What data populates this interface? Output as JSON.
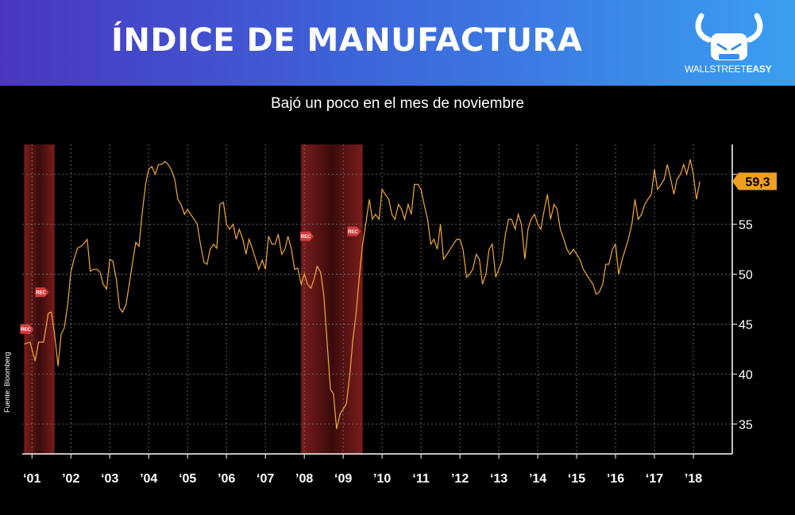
{
  "header": {
    "title": "ÍNDICE DE MANUFACTURA",
    "brand_regular": "WALLSTREET",
    "brand_bold": "EASY",
    "logo_icon": "fist-horns-icon"
  },
  "source_note": "Fuente: Bloomberg",
  "chart_data": {
    "type": "line",
    "title": "",
    "subtitle": "Bajó un poco en el mes de noviembre",
    "xlabel": "",
    "ylabel": "",
    "x_ticks": [
      "‘01",
      "’02",
      "‘03",
      "’04",
      "‘05",
      "’06",
      "‘07",
      "’08",
      "‘09",
      "’10",
      "‘11",
      "’12",
      "‘13",
      "’14",
      "‘15",
      "’16",
      "‘17",
      "’18"
    ],
    "xlim": [
      2000.75,
      2019.0
    ],
    "ylim": [
      32,
      63
    ],
    "y_ticks": [
      35,
      40,
      45,
      50,
      55
    ],
    "grid": true,
    "series": [
      {
        "color": "#f0a93c",
        "points": [
          [
            2000.8,
            43.0
          ],
          [
            2000.95,
            43.2
          ],
          [
            2001.0,
            42.5
          ],
          [
            2001.08,
            41.3
          ],
          [
            2001.17,
            43.2
          ],
          [
            2001.3,
            43.2
          ],
          [
            2001.42,
            46.1
          ],
          [
            2001.5,
            46.2
          ],
          [
            2001.58,
            44.0
          ],
          [
            2001.67,
            40.8
          ],
          [
            2001.75,
            44.0
          ],
          [
            2001.83,
            44.6
          ],
          [
            2001.92,
            47.0
          ],
          [
            2002.0,
            50.2
          ],
          [
            2002.08,
            51.5
          ],
          [
            2002.17,
            52.6
          ],
          [
            2002.3,
            52.9
          ],
          [
            2002.42,
            53.5
          ],
          [
            2002.5,
            50.3
          ],
          [
            2002.58,
            50.5
          ],
          [
            2002.67,
            50.5
          ],
          [
            2002.75,
            50.2
          ],
          [
            2002.83,
            49.0
          ],
          [
            2002.92,
            48.5
          ],
          [
            2003.0,
            51.5
          ],
          [
            2003.08,
            51.3
          ],
          [
            2003.17,
            49.5
          ],
          [
            2003.25,
            46.6
          ],
          [
            2003.33,
            46.2
          ],
          [
            2003.42,
            47.0
          ],
          [
            2003.5,
            49.0
          ],
          [
            2003.58,
            51.0
          ],
          [
            2003.67,
            53.2
          ],
          [
            2003.75,
            52.8
          ],
          [
            2003.83,
            56.0
          ],
          [
            2003.92,
            59.0
          ],
          [
            2004.0,
            60.5
          ],
          [
            2004.08,
            60.8
          ],
          [
            2004.17,
            60.0
          ],
          [
            2004.25,
            61.0
          ],
          [
            2004.33,
            61.0
          ],
          [
            2004.42,
            61.3
          ],
          [
            2004.5,
            61.0
          ],
          [
            2004.58,
            60.5
          ],
          [
            2004.67,
            59.5
          ],
          [
            2004.75,
            57.5
          ],
          [
            2004.83,
            57.0
          ],
          [
            2004.92,
            56.0
          ],
          [
            2005.0,
            56.5
          ],
          [
            2005.08,
            56.0
          ],
          [
            2005.17,
            55.5
          ],
          [
            2005.25,
            55.0
          ],
          [
            2005.33,
            53.0
          ],
          [
            2005.42,
            51.2
          ],
          [
            2005.5,
            51.0
          ],
          [
            2005.58,
            52.5
          ],
          [
            2005.67,
            53.0
          ],
          [
            2005.75,
            52.6
          ],
          [
            2005.83,
            57.0
          ],
          [
            2005.92,
            57.2
          ],
          [
            2006.0,
            55.0
          ],
          [
            2006.08,
            54.5
          ],
          [
            2006.17,
            55.0
          ],
          [
            2006.25,
            53.5
          ],
          [
            2006.33,
            54.5
          ],
          [
            2006.42,
            53.5
          ],
          [
            2006.5,
            52.0
          ],
          [
            2006.58,
            53.5
          ],
          [
            2006.67,
            52.5
          ],
          [
            2006.75,
            51.5
          ],
          [
            2006.83,
            50.5
          ],
          [
            2006.92,
            51.4
          ],
          [
            2007.0,
            50.5
          ],
          [
            2007.08,
            53.8
          ],
          [
            2007.17,
            53.0
          ],
          [
            2007.25,
            53.0
          ],
          [
            2007.33,
            54.0
          ],
          [
            2007.42,
            52.0
          ],
          [
            2007.5,
            52.5
          ],
          [
            2007.58,
            53.8
          ],
          [
            2007.67,
            52.5
          ],
          [
            2007.75,
            50.5
          ],
          [
            2007.83,
            50.6
          ],
          [
            2007.92,
            49.0
          ],
          [
            2008.0,
            50.0
          ],
          [
            2008.08,
            49.0
          ],
          [
            2008.17,
            48.6
          ],
          [
            2008.25,
            49.5
          ],
          [
            2008.33,
            50.8
          ],
          [
            2008.42,
            50.2
          ],
          [
            2008.5,
            48.0
          ],
          [
            2008.58,
            43.5
          ],
          [
            2008.67,
            38.5
          ],
          [
            2008.75,
            38.0
          ],
          [
            2008.83,
            34.5
          ],
          [
            2008.92,
            36.0
          ],
          [
            2009.0,
            36.5
          ],
          [
            2009.08,
            37.0
          ],
          [
            2009.17,
            40.0
          ],
          [
            2009.25,
            43.5
          ],
          [
            2009.33,
            46.0
          ],
          [
            2009.42,
            50.0
          ],
          [
            2009.5,
            53.0
          ],
          [
            2009.58,
            55.0
          ],
          [
            2009.67,
            57.5
          ],
          [
            2009.75,
            55.5
          ],
          [
            2009.83,
            56.0
          ],
          [
            2009.92,
            55.5
          ],
          [
            2010.0,
            58.5
          ],
          [
            2010.08,
            58.0
          ],
          [
            2010.17,
            57.5
          ],
          [
            2010.25,
            56.0
          ],
          [
            2010.33,
            55.5
          ],
          [
            2010.42,
            57.0
          ],
          [
            2010.5,
            56.5
          ],
          [
            2010.58,
            55.5
          ],
          [
            2010.67,
            57.0
          ],
          [
            2010.75,
            56.0
          ],
          [
            2010.83,
            59.0
          ],
          [
            2010.92,
            59.0
          ],
          [
            2011.0,
            58.5
          ],
          [
            2011.08,
            57.0
          ],
          [
            2011.17,
            55.5
          ],
          [
            2011.25,
            53.0
          ],
          [
            2011.33,
            53.5
          ],
          [
            2011.42,
            52.5
          ],
          [
            2011.5,
            55.0
          ],
          [
            2011.58,
            51.5
          ],
          [
            2011.67,
            52.0
          ],
          [
            2011.75,
            52.5
          ],
          [
            2011.83,
            53.0
          ],
          [
            2011.92,
            53.5
          ],
          [
            2012.0,
            53.5
          ],
          [
            2012.08,
            52.5
          ],
          [
            2012.17,
            49.7
          ],
          [
            2012.25,
            50.0
          ],
          [
            2012.33,
            50.5
          ],
          [
            2012.42,
            52.0
          ],
          [
            2012.5,
            51.5
          ],
          [
            2012.58,
            49.0
          ],
          [
            2012.67,
            50.0
          ],
          [
            2012.75,
            52.5
          ],
          [
            2012.83,
            53.0
          ],
          [
            2012.92,
            49.7
          ],
          [
            2013.0,
            50.5
          ],
          [
            2013.08,
            51.3
          ],
          [
            2013.17,
            54.0
          ],
          [
            2013.25,
            55.5
          ],
          [
            2013.33,
            55.5
          ],
          [
            2013.42,
            54.5
          ],
          [
            2013.5,
            56.0
          ],
          [
            2013.58,
            55.0
          ],
          [
            2013.67,
            51.5
          ],
          [
            2013.75,
            54.5
          ],
          [
            2013.83,
            55.5
          ],
          [
            2013.92,
            56.0
          ],
          [
            2014.0,
            55.0
          ],
          [
            2014.08,
            54.5
          ],
          [
            2014.17,
            56.5
          ],
          [
            2014.25,
            58.0
          ],
          [
            2014.33,
            55.5
          ],
          [
            2014.42,
            57.0
          ],
          [
            2014.5,
            56.5
          ],
          [
            2014.58,
            54.5
          ],
          [
            2014.67,
            53.5
          ],
          [
            2014.75,
            52.5
          ],
          [
            2014.83,
            52.0
          ],
          [
            2014.92,
            52.5
          ],
          [
            2015.0,
            52.0
          ],
          [
            2015.08,
            51.5
          ],
          [
            2015.17,
            50.5
          ],
          [
            2015.25,
            50.0
          ],
          [
            2015.33,
            49.5
          ],
          [
            2015.42,
            49.0
          ],
          [
            2015.5,
            48.0
          ],
          [
            2015.58,
            48.2
          ],
          [
            2015.67,
            49.0
          ],
          [
            2015.75,
            51.0
          ],
          [
            2015.83,
            51.0
          ],
          [
            2015.92,
            52.5
          ],
          [
            2016.0,
            53.0
          ],
          [
            2016.08,
            50.0
          ],
          [
            2016.17,
            51.5
          ],
          [
            2016.25,
            52.5
          ],
          [
            2016.33,
            53.5
          ],
          [
            2016.42,
            55.0
          ],
          [
            2016.5,
            57.5
          ],
          [
            2016.58,
            55.5
          ],
          [
            2016.67,
            56.0
          ],
          [
            2016.75,
            57.0
          ],
          [
            2016.83,
            57.5
          ],
          [
            2016.92,
            58.0
          ],
          [
            2017.0,
            60.5
          ],
          [
            2017.08,
            58.5
          ],
          [
            2017.17,
            59.0
          ],
          [
            2017.25,
            59.5
          ],
          [
            2017.33,
            61.0
          ],
          [
            2017.42,
            59.5
          ],
          [
            2017.5,
            58.0
          ],
          [
            2017.58,
            59.5
          ],
          [
            2017.67,
            60.0
          ],
          [
            2017.75,
            61.0
          ],
          [
            2017.83,
            60.0
          ],
          [
            2017.92,
            61.5
          ],
          [
            2018.0,
            60.0
          ],
          [
            2018.08,
            57.5
          ],
          [
            2018.17,
            59.3
          ]
        ]
      }
    ],
    "last_value_label": "59,3",
    "last_value": 59.3,
    "recession_bands": [
      [
        2000.8,
        2001.58
      ],
      [
        2007.92,
        2009.5
      ]
    ],
    "rec_markers": [
      {
        "label": "REC",
        "x": 2000.86,
        "y": 44.5
      },
      {
        "label": "REC",
        "x": 2001.25,
        "y": 48.2
      },
      {
        "label": "REC",
        "x": 2008.06,
        "y": 53.8
      },
      {
        "label": "REC",
        "x": 2009.27,
        "y": 54.3
      }
    ]
  }
}
